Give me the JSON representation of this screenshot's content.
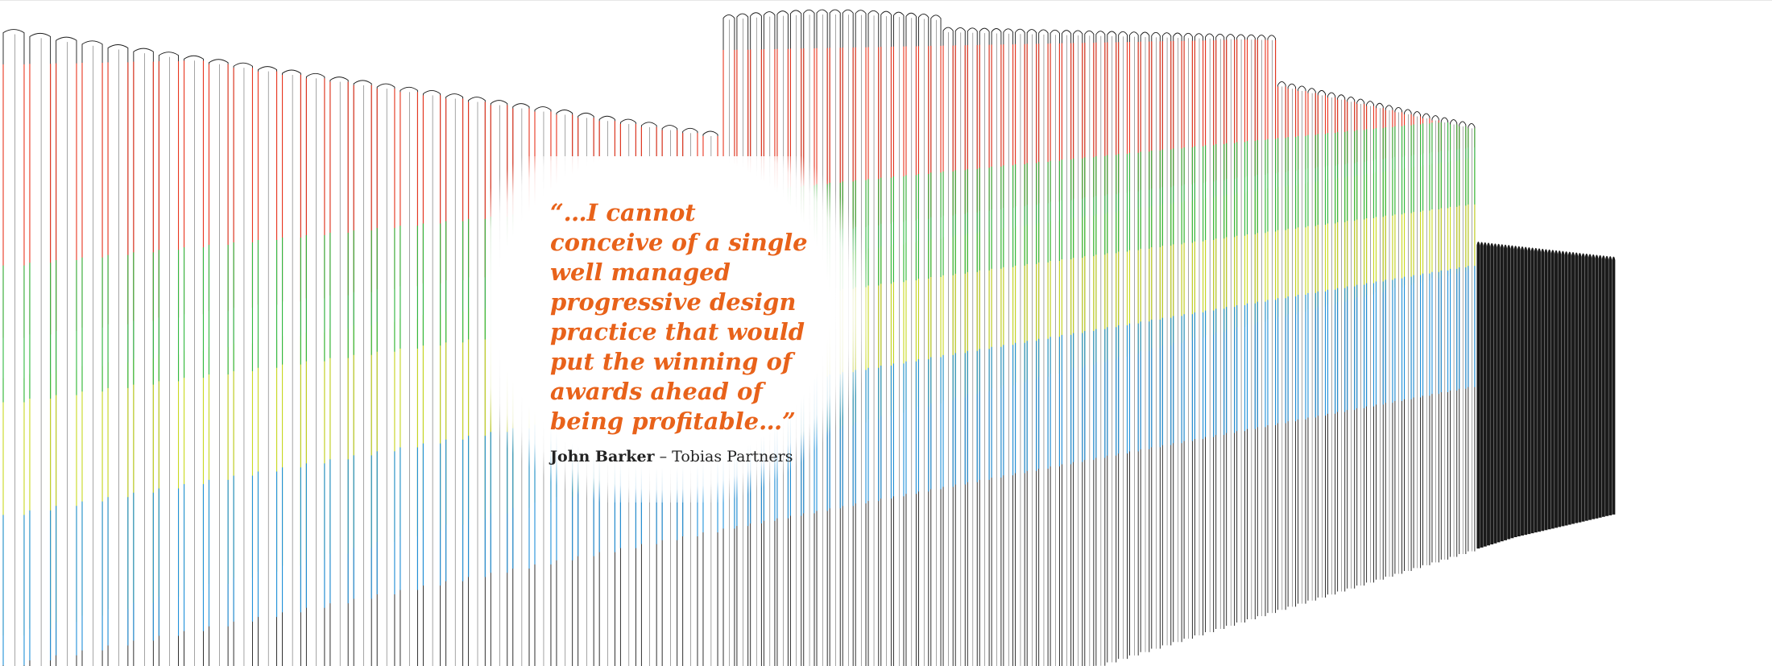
{
  "quote": {
    "text": "“…I cannot\nconceive of a single\nwell managed\nprogressive design\npractice that would\nput the winning of\nawards ahead of\nbeing profitable…”",
    "color": "#e8621a"
  },
  "attribution": {
    "name": "John Barker",
    "separator": " – ",
    "company": "Tobias Partners"
  },
  "palette": {
    "red": "#e8351e",
    "orange": "#f0a020",
    "lime": "#c8d820",
    "green": "#30b840",
    "blue": "#2090d8",
    "black": "#1a1a1a"
  }
}
